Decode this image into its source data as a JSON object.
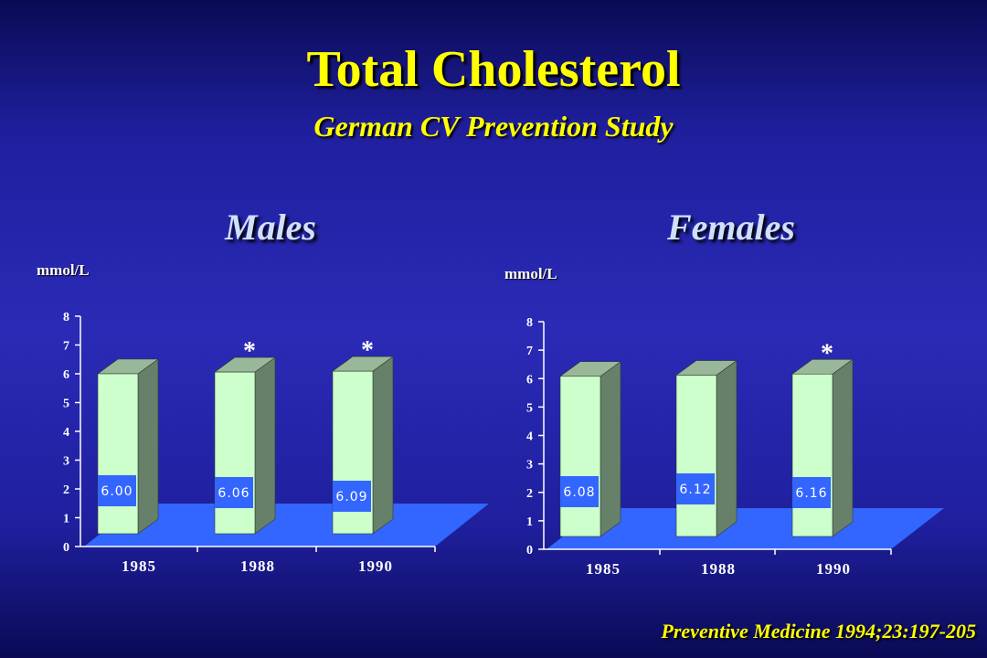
{
  "slide": {
    "title": "Total Cholesterol",
    "subtitle": "German CV Prevention Study",
    "source": "Preventive Medicine 1994;23:197-205"
  },
  "colors": {
    "title": "#ffff00",
    "floor": "#3366ff",
    "bar_front": "#ccffcc",
    "bar_side": "#66806a",
    "bar_top": "#99b899",
    "value_box": "#3366ff"
  },
  "chart_data": [
    {
      "type": "bar",
      "title": "Males",
      "ylabel": "mmol/L",
      "ylim": [
        0,
        8
      ],
      "yticks": [
        "0",
        "1",
        "2",
        "3",
        "4",
        "5",
        "6",
        "7",
        "8"
      ],
      "categories": [
        "1985",
        "1988",
        "1990"
      ],
      "values": [
        6.0,
        6.06,
        6.09
      ],
      "value_labels": [
        "6.00",
        "6.06",
        "6.09"
      ],
      "markers": [
        "",
        "*",
        "*"
      ]
    },
    {
      "type": "bar",
      "title": "Females",
      "ylabel": "mmol/L",
      "ylim": [
        0,
        8
      ],
      "yticks": [
        "0",
        "1",
        "2",
        "3",
        "4",
        "5",
        "6",
        "7",
        "8"
      ],
      "categories": [
        "1985",
        "1988",
        "1990"
      ],
      "values": [
        6.08,
        6.12,
        6.16
      ],
      "value_labels": [
        "6.08",
        "6.12",
        "6.16"
      ],
      "markers": [
        "",
        "",
        "*"
      ]
    }
  ]
}
